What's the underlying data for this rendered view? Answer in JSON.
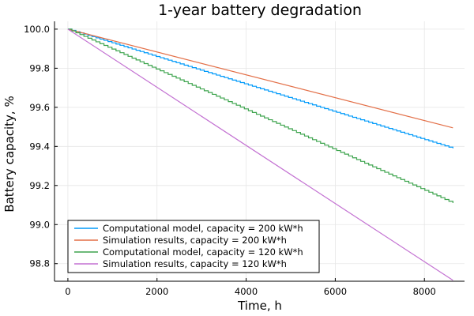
{
  "chart_data": {
    "type": "line",
    "title": "1-year battery degradation",
    "xlabel": "Time, h",
    "ylabel": "Battery capacity, %",
    "xlim": [
      -300,
      8900
    ],
    "ylim": [
      98.71,
      100.04
    ],
    "xticks": [
      0,
      2000,
      4000,
      6000,
      8000
    ],
    "xtick_labels": [
      "0",
      "2000",
      "4000",
      "6000",
      "8000"
    ],
    "yticks": [
      98.8,
      99.0,
      99.2,
      99.4,
      99.6,
      99.8,
      100.0
    ],
    "ytick_labels": [
      "98.8",
      "99.0",
      "99.2",
      "99.4",
      "99.6",
      "99.8",
      "100.0"
    ],
    "grid": true,
    "legend_position": "bottom-left",
    "series": [
      {
        "name": "Computational model, capacity = 200 kW*h",
        "color": "#009AFA",
        "x": [
          0,
          8640
        ],
        "y": [
          100.0,
          99.39
        ],
        "stepped": true
      },
      {
        "name": "Simulation results, capacity = 200 kW*h",
        "color": "#E36F47",
        "x": [
          0,
          8640
        ],
        "y": [
          100.0,
          99.495
        ],
        "stepped": false
      },
      {
        "name": "Computational model, capacity = 120 kW*h",
        "color": "#3EA44E",
        "x": [
          0,
          8640
        ],
        "y": [
          100.0,
          99.11
        ],
        "stepped": true
      },
      {
        "name": "Simulation results, capacity = 120 kW*h",
        "color": "#C371D2",
        "x": [
          0,
          8640
        ],
        "y": [
          100.0,
          98.715
        ],
        "stepped": false
      }
    ]
  }
}
